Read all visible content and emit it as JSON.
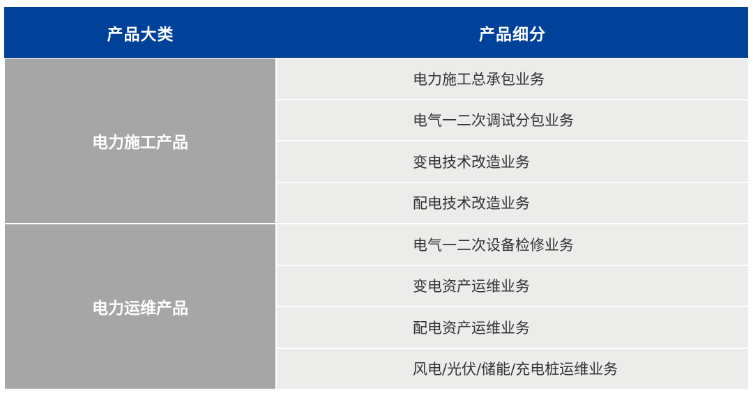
{
  "header": {
    "category": "产品大类",
    "subcategory": "产品细分"
  },
  "groups": [
    {
      "category": "电力施工产品",
      "items": [
        "电力施工总承包业务",
        "电气一二次调试分包业务",
        "变电技术改造业务",
        "配电技术改造业务"
      ]
    },
    {
      "category": "电力运维产品",
      "items": [
        "电气一二次设备检修业务",
        "变电资产运维业务",
        "配电资产运维业务",
        "风电/光伏/储能/充电桩运维业务"
      ]
    }
  ],
  "colors": {
    "header": "#00419a",
    "category_cell": "#a6a6a6",
    "item_cell": "#ececea"
  }
}
